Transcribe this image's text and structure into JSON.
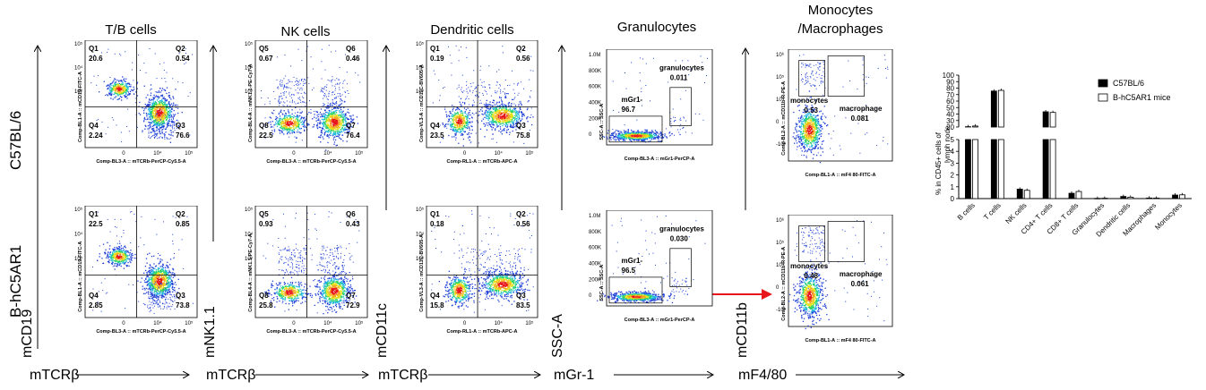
{
  "panel_titles": {
    "tb": "T/B cells",
    "nk": "NK cells",
    "dc": "Dendritic cells",
    "gran": "Granulocytes",
    "mono1": "Monocytes",
    "mono2": "/Macrophages"
  },
  "row_labels": {
    "top": "C57BL/6",
    "bottom": "B-hC5AR1"
  },
  "axis_labels": {
    "y": [
      "mCD19",
      "mNK1.1",
      "mCD11c",
      "SSC-A",
      "mCD11b"
    ],
    "x": [
      "mTCRβ",
      "mTCRβ",
      "mTCRβ",
      "mGr-1",
      "mF4/80"
    ]
  },
  "colors": {
    "dot_blue": "#1f3fd6",
    "hot_red": "#e8141c",
    "arrow_red": "#e8141c"
  },
  "flow_panels": [
    {
      "id": "tb-top",
      "type": "quad",
      "ylabel": "Comp-BL1-A :: mCD19-FITC-A",
      "xlabel": "Comp-BL3-A :: mTCRb-PerCP-Cy5.5-A",
      "q": [
        {
          "name": "Q1",
          "val": "20.6"
        },
        {
          "name": "Q2",
          "val": "0.54"
        },
        {
          "name": "Q3",
          "val": "76.6"
        },
        {
          "name": "Q4",
          "val": "2.24"
        }
      ]
    },
    {
      "id": "nk-top",
      "type": "quad",
      "ylabel": "Comp-BL4-A :: mNK1.1-PE-Cy7-A",
      "xlabel": "Comp-BL3-A :: mTCRb-PerCP-Cy5.5-A",
      "q": [
        {
          "name": "Q5",
          "val": "0.67"
        },
        {
          "name": "Q6",
          "val": "0.46"
        },
        {
          "name": "Q7",
          "val": "76.4"
        },
        {
          "name": "Q8",
          "val": "22.5"
        }
      ]
    },
    {
      "id": "dc-top",
      "type": "quad",
      "ylabel": "Comp-VL3-A :: mCD11C-BV605-A",
      "xlabel": "Comp-RL1-A :: mTCRb-APC-A",
      "q": [
        {
          "name": "Q1",
          "val": "0.19"
        },
        {
          "name": "Q2",
          "val": "0.56"
        },
        {
          "name": "Q3",
          "val": "75.8"
        },
        {
          "name": "Q4",
          "val": "23.5"
        }
      ]
    },
    {
      "id": "gran-top",
      "type": "gran",
      "ylabel": "SSC-A :: SSC-A",
      "xlabel": "Comp-BL3-A :: mGr1-PerCP-A",
      "g1": {
        "name": "mGr1-",
        "val": "96.7"
      },
      "g2": {
        "name": "granulocytes",
        "val": "0.011"
      }
    },
    {
      "id": "mono-top",
      "type": "mono",
      "ylabel": "Comp-BL2-A :: mCD11b-R-PE-A",
      "xlabel": "Comp-BL1-A :: mF4 80-FITC-A",
      "g1": {
        "name": "monocytes",
        "val": "0.53"
      },
      "g2": {
        "name": "macrophage",
        "val": "0.081"
      }
    },
    {
      "id": "tb-bot",
      "type": "quad",
      "ylabel": "Comp-BL1-A :: mCD19-FITC-A",
      "xlabel": "Comp-BL3-A :: mTCRb-PerCP-Cy5.5-A",
      "q": [
        {
          "name": "Q1",
          "val": "22.5"
        },
        {
          "name": "Q2",
          "val": "0.85"
        },
        {
          "name": "Q3",
          "val": "73.8"
        },
        {
          "name": "Q4",
          "val": "2.85"
        }
      ]
    },
    {
      "id": "nk-bot",
      "type": "quad",
      "ylabel": "Comp-BL4-A :: mNK1.1-PE-Cy7-A",
      "xlabel": "Comp-BL3-A :: mTCRb-PerCP-Cy5.5-A",
      "q": [
        {
          "name": "Q5",
          "val": "0.93"
        },
        {
          "name": "Q6",
          "val": "0.43"
        },
        {
          "name": "Q7",
          "val": "72.9"
        },
        {
          "name": "Q8",
          "val": "25.8"
        }
      ]
    },
    {
      "id": "dc-bot",
      "type": "quad",
      "ylabel": "Comp-VL3-A :: mCD11C-BV605-A",
      "xlabel": "Comp-RL1-A :: mTCRb-APC-A",
      "q": [
        {
          "name": "Q1",
          "val": "0.18"
        },
        {
          "name": "Q2",
          "val": "0.56"
        },
        {
          "name": "Q3",
          "val": "83.5"
        },
        {
          "name": "Q4",
          "val": "15.8"
        }
      ]
    },
    {
      "id": "gran-bot",
      "type": "gran",
      "ylabel": "SSC-A :: SSC-A",
      "xlabel": "Comp-BL3-A :: mGr1-PerCP-A",
      "g1": {
        "name": "mGr1-",
        "val": "96.5"
      },
      "g2": {
        "name": "granulocytes",
        "val": "0.030"
      }
    },
    {
      "id": "mono-bot",
      "type": "mono",
      "ylabel": "Comp-BL2-A :: mCD11b-R-PE-A",
      "xlabel": "Comp-BL1-A :: mF4 80-FITC-A",
      "g1": {
        "name": "monocytes",
        "val": "0.48"
      },
      "g2": {
        "name": "macrophage",
        "val": "0.061"
      }
    }
  ],
  "chart_data": {
    "type": "bar",
    "title": "",
    "ylabel": "% in CD45+ cells of lymph node",
    "categories": [
      "B cells",
      "T cells",
      "NK cells",
      "CD4+ T cells",
      "CD8+ T cells",
      "Granulocytes",
      "Dendritic cells",
      "Macrophages",
      "Monocytes"
    ],
    "series": [
      {
        "name": "C57BL/6",
        "values": [
          20.5,
          75.5,
          0.8,
          43.5,
          0.45,
          0.02,
          0.18,
          0.05,
          0.3
        ],
        "color": "#000000"
      },
      {
        "name": "B-hC5AR1 mice",
        "values": [
          21.5,
          76.5,
          0.7,
          42.5,
          0.6,
          0.03,
          0.12,
          0.04,
          0.32
        ],
        "color": "#ffffff"
      }
    ],
    "yaxis_break": {
      "lower": [
        0,
        5
      ],
      "upper": [
        20,
        100
      ]
    },
    "yticks_lower": [
      "0",
      "1",
      "2",
      "3",
      "4",
      "5"
    ],
    "yticks_upper": [
      "20",
      "30",
      "40",
      "50",
      "60",
      "70",
      "80",
      "90",
      "100"
    ],
    "legend_position": "top-right"
  }
}
